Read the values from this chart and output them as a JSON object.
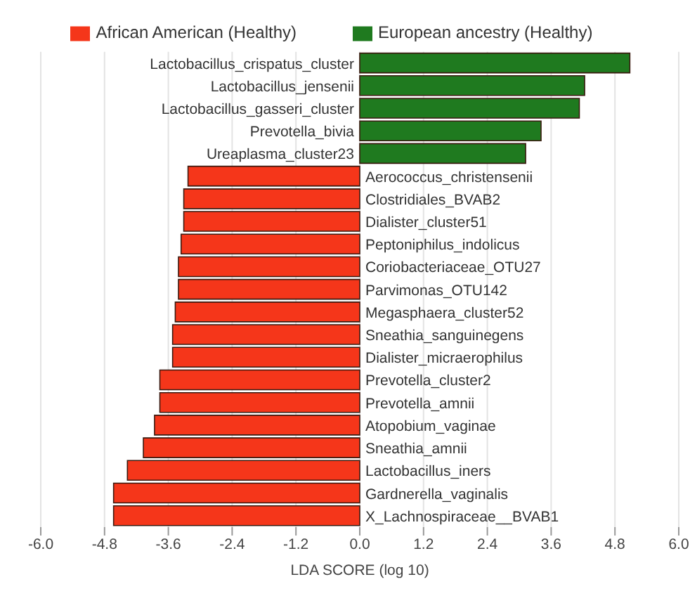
{
  "chart_data": {
    "type": "bar",
    "orientation": "horizontal",
    "xlabel": "LDA SCORE (log 10)",
    "categories": [
      "Lactobacillus_crispatus_cluster",
      "Lactobacillus_jensenii",
      "Lactobacillus_gasseri_cluster",
      "Prevotella_bivia",
      "Ureaplasma_cluster23",
      "Aerococcus_christensenii",
      "Clostridiales_BVAB2",
      "Dialister_cluster51",
      "Peptoniphilus_indolicus",
      "Coriobacteriaceae_OTU27",
      "Parvimonas_OTU142",
      "Megasphaera_cluster52",
      "Sneathia_sanguinegens",
      "Dialister_micraerophilus",
      "Prevotella_cluster2",
      "Prevotella_amnii",
      "Atopobium_vaginae",
      "Sneathia_amnii",
      "Lactobacillus_iners",
      "Gardnerella_vaginalis",
      "X_Lachnospiraceae__BVAB1"
    ],
    "series": [
      {
        "name": "African American (Healthy)",
        "color": "#f5361a",
        "values": [
          null,
          null,
          null,
          null,
          null,
          -3.23,
          -3.31,
          -3.31,
          -3.36,
          -3.41,
          -3.41,
          -3.47,
          -3.52,
          -3.52,
          -3.76,
          -3.76,
          -3.86,
          -4.07,
          -4.37,
          -4.63,
          -4.63
        ]
      },
      {
        "name": "European ancestry (Healthy)",
        "color": "#1f7a1f",
        "values": [
          5.08,
          4.23,
          4.13,
          3.41,
          3.12,
          null,
          null,
          null,
          null,
          null,
          null,
          null,
          null,
          null,
          null,
          null,
          null,
          null,
          null,
          null,
          null
        ]
      }
    ],
    "xlim": [
      -6,
      6
    ],
    "xticks": [
      {
        "value": -6,
        "label": "-6.0"
      },
      {
        "value": -4.8,
        "label": "-4.8"
      },
      {
        "value": -3.6,
        "label": "-3.6"
      },
      {
        "value": -2.4,
        "label": "-2.4"
      },
      {
        "value": -1.2,
        "label": "-1.2"
      },
      {
        "value": 0,
        "label": "0.0"
      },
      {
        "value": 1.2,
        "label": "1.2"
      },
      {
        "value": 2.4,
        "label": "2.4"
      },
      {
        "value": 3.6,
        "label": "3.6"
      },
      {
        "value": 4.8,
        "label": "4.8"
      },
      {
        "value": 6,
        "label": "6.0"
      }
    ],
    "grid": "x",
    "legend": "top"
  }
}
